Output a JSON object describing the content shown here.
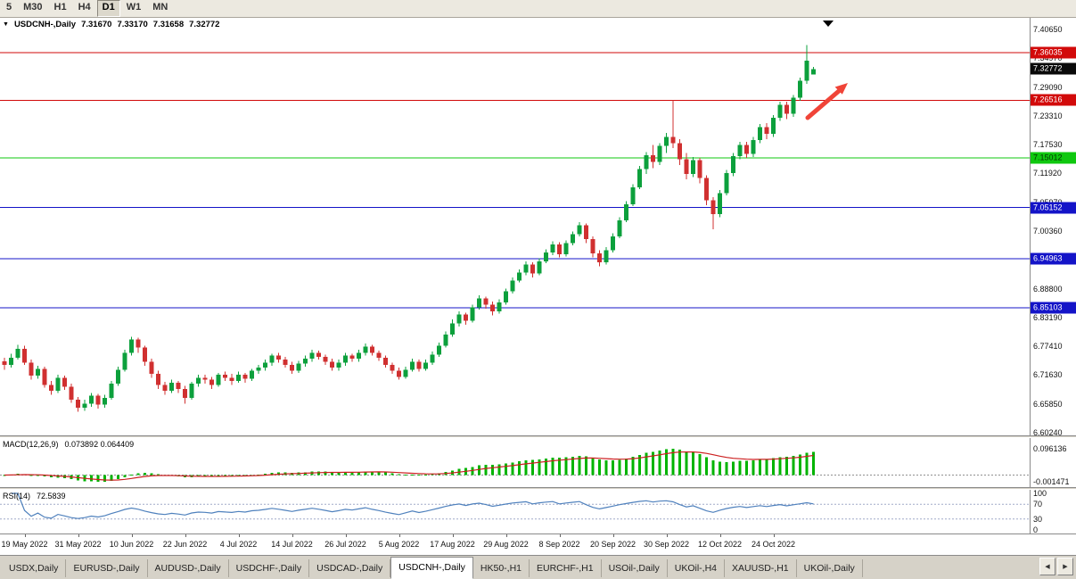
{
  "toolbar": {
    "timeframes": [
      {
        "label": "5",
        "active": false
      },
      {
        "label": "M30",
        "active": false
      },
      {
        "label": "H1",
        "active": false
      },
      {
        "label": "H4",
        "active": false
      },
      {
        "label": "D1",
        "active": true
      },
      {
        "label": "W1",
        "active": false
      },
      {
        "label": "MN",
        "active": false
      }
    ]
  },
  "symbol_info": {
    "collapse_icon": "▼",
    "symbol": "USDCNH-,Daily",
    "open": "7.31670",
    "high": "7.33170",
    "low": "7.31658",
    "close": "7.32772"
  },
  "price_scale": {
    "top_value": 7.4065,
    "bottom_value": 6.6024,
    "labels": [
      "7.40650",
      "7.34970",
      "7.29090",
      "7.23310",
      "7.17530",
      "7.11920",
      "7.05970",
      "7.00360",
      "6.94580",
      "6.88800",
      "6.83190",
      "6.77410",
      "6.71630",
      "6.65850",
      "6.60240"
    ]
  },
  "levels": [
    {
      "name": "resistance-1",
      "value": 7.36035,
      "label": "7.36035",
      "line_color": "#d20a0a",
      "tag_bg": "#d20a0a",
      "tag_fg": "#ffffff",
      "draw_line": true
    },
    {
      "name": "current-price",
      "value": 7.32772,
      "label": "7.32772",
      "line_color": "#000000",
      "tag_bg": "#0a0a0a",
      "tag_fg": "#ffffff",
      "draw_line": false
    },
    {
      "name": "resistance-2",
      "value": 7.26516,
      "label": "7.26516",
      "line_color": "#d20a0a",
      "tag_bg": "#d20a0a",
      "tag_fg": "#ffffff",
      "draw_line": true
    },
    {
      "name": "pivot-green",
      "value": 7.15012,
      "label": "7.15012",
      "line_color": "#0fc80f",
      "tag_bg": "#0fc80f",
      "tag_fg": "#003300",
      "draw_line": true
    },
    {
      "name": "support-1",
      "value": 7.05152,
      "label": "7.05152",
      "line_color": "#1414c8",
      "tag_bg": "#1414c8",
      "tag_fg": "#ffffff",
      "draw_line": true
    },
    {
      "name": "support-2",
      "value": 6.94963,
      "label": "6.94963",
      "line_color": "#1414c8",
      "tag_bg": "#1414c8",
      "tag_fg": "#ffffff",
      "draw_line": true
    },
    {
      "name": "support-3",
      "value": 6.85103,
      "label": "6.85103",
      "line_color": "#1414c8",
      "tag_bg": "#1414c8",
      "tag_fg": "#ffffff",
      "draw_line": true
    }
  ],
  "date_axis": {
    "labels": [
      "19 May 2022",
      "31 May 2022",
      "10 Jun 2022",
      "22 Jun 2022",
      "4 Jul 2022",
      "14 Jul 2022",
      "26 Jul 2022",
      "5 Aug 2022",
      "17 Aug 2022",
      "29 Aug 2022",
      "8 Sep 2022",
      "20 Sep 2022",
      "30 Sep 2022",
      "12 Oct 2022",
      "24 Oct 2022"
    ],
    "candle_indices": [
      3,
      11,
      19,
      27,
      35,
      43,
      51,
      59,
      67,
      75,
      83,
      91,
      99,
      107,
      115
    ]
  },
  "chart_data": {
    "type": "candlestick",
    "symbol": "USDCNH-",
    "timeframe": "Daily",
    "up_color": "#0ca03c",
    "down_color": "#d03030",
    "ohlc": [
      [
        6.745,
        6.752,
        6.728,
        6.738
      ],
      [
        6.738,
        6.76,
        6.732,
        6.752
      ],
      [
        6.752,
        6.778,
        6.748,
        6.77
      ],
      [
        6.77,
        6.776,
        6.738,
        6.742
      ],
      [
        6.742,
        6.748,
        6.708,
        6.716
      ],
      [
        6.716,
        6.736,
        6.71,
        6.73
      ],
      [
        6.73,
        6.734,
        6.692,
        6.698
      ],
      [
        6.698,
        6.706,
        6.678,
        6.686
      ],
      [
        6.686,
        6.718,
        6.682,
        6.712
      ],
      [
        6.712,
        6.716,
        6.688,
        6.694
      ],
      [
        6.694,
        6.7,
        6.662,
        6.668
      ],
      [
        6.668,
        6.674,
        6.644,
        6.652
      ],
      [
        6.652,
        6.668,
        6.646,
        6.66
      ],
      [
        6.66,
        6.682,
        6.654,
        6.676
      ],
      [
        6.676,
        6.68,
        6.65,
        6.658
      ],
      [
        6.658,
        6.678,
        6.652,
        6.672
      ],
      [
        6.672,
        6.706,
        6.668,
        6.7
      ],
      [
        6.7,
        6.734,
        6.696,
        6.728
      ],
      [
        6.728,
        6.768,
        6.724,
        6.762
      ],
      [
        6.762,
        6.794,
        6.756,
        6.788
      ],
      [
        6.788,
        6.792,
        6.762,
        6.772
      ],
      [
        6.772,
        6.776,
        6.736,
        6.744
      ],
      [
        6.744,
        6.75,
        6.712,
        6.72
      ],
      [
        6.72,
        6.726,
        6.69,
        6.698
      ],
      [
        6.698,
        6.704,
        6.678,
        6.686
      ],
      [
        6.686,
        6.708,
        6.682,
        6.702
      ],
      [
        6.702,
        6.706,
        6.682,
        6.69
      ],
      [
        6.69,
        6.696,
        6.66,
        6.672
      ],
      [
        6.672,
        6.704,
        6.668,
        6.7
      ],
      [
        6.7,
        6.718,
        6.694,
        6.712
      ],
      [
        6.712,
        6.718,
        6.7,
        6.708
      ],
      [
        6.708,
        6.714,
        6.69,
        6.698
      ],
      [
        6.698,
        6.722,
        6.694,
        6.718
      ],
      [
        6.718,
        6.724,
        6.706,
        6.712
      ],
      [
        6.712,
        6.72,
        6.698,
        6.706
      ],
      [
        6.706,
        6.724,
        6.702,
        6.718
      ],
      [
        6.718,
        6.722,
        6.702,
        6.71
      ],
      [
        6.71,
        6.73,
        6.706,
        6.726
      ],
      [
        6.726,
        6.738,
        6.72,
        6.732
      ],
      [
        6.732,
        6.748,
        6.726,
        6.742
      ],
      [
        6.742,
        6.76,
        6.736,
        6.756
      ],
      [
        6.756,
        6.762,
        6.742,
        6.748
      ],
      [
        6.748,
        6.754,
        6.732,
        6.738
      ],
      [
        6.738,
        6.744,
        6.72,
        6.726
      ],
      [
        6.726,
        6.746,
        6.722,
        6.74
      ],
      [
        6.74,
        6.756,
        6.734,
        6.75
      ],
      [
        6.75,
        6.768,
        6.744,
        6.762
      ],
      [
        6.762,
        6.766,
        6.748,
        6.754
      ],
      [
        6.754,
        6.758,
        6.738,
        6.744
      ],
      [
        6.744,
        6.75,
        6.726,
        6.732
      ],
      [
        6.732,
        6.748,
        6.726,
        6.742
      ],
      [
        6.742,
        6.762,
        6.736,
        6.756
      ],
      [
        6.756,
        6.76,
        6.744,
        6.75
      ],
      [
        6.75,
        6.768,
        6.744,
        6.762
      ],
      [
        6.762,
        6.78,
        6.756,
        6.774
      ],
      [
        6.774,
        6.778,
        6.756,
        6.762
      ],
      [
        6.762,
        6.766,
        6.746,
        6.752
      ],
      [
        6.752,
        6.756,
        6.732,
        6.738
      ],
      [
        6.738,
        6.742,
        6.72,
        6.726
      ],
      [
        6.726,
        6.732,
        6.708,
        6.714
      ],
      [
        6.714,
        6.734,
        6.71,
        6.728
      ],
      [
        6.728,
        6.75,
        6.724,
        6.744
      ],
      [
        6.744,
        6.748,
        6.724,
        6.73
      ],
      [
        6.73,
        6.748,
        6.726,
        6.742
      ],
      [
        6.742,
        6.764,
        6.738,
        6.758
      ],
      [
        6.758,
        6.782,
        6.754,
        6.776
      ],
      [
        6.776,
        6.804,
        6.772,
        6.798
      ],
      [
        6.798,
        6.828,
        6.794,
        6.82
      ],
      [
        6.82,
        6.844,
        6.814,
        6.838
      ],
      [
        6.838,
        6.842,
        6.818,
        6.826
      ],
      [
        6.826,
        6.858,
        6.822,
        6.852
      ],
      [
        6.852,
        6.876,
        6.848,
        6.87
      ],
      [
        6.87,
        6.874,
        6.85,
        6.858
      ],
      [
        6.858,
        6.864,
        6.836,
        6.844
      ],
      [
        6.844,
        6.868,
        6.84,
        6.862
      ],
      [
        6.862,
        6.89,
        6.858,
        6.884
      ],
      [
        6.884,
        6.912,
        6.88,
        6.906
      ],
      [
        6.906,
        6.928,
        6.902,
        6.922
      ],
      [
        6.922,
        6.944,
        6.916,
        6.938
      ],
      [
        6.938,
        6.942,
        6.912,
        6.92
      ],
      [
        6.92,
        6.95,
        6.916,
        6.944
      ],
      [
        6.944,
        6.968,
        6.94,
        6.962
      ],
      [
        6.962,
        6.984,
        6.956,
        6.978
      ],
      [
        6.978,
        6.982,
        6.952,
        6.958
      ],
      [
        6.958,
        6.986,
        6.954,
        6.98
      ],
      [
        6.98,
        7.004,
        6.976,
        6.998
      ],
      [
        6.998,
        7.022,
        6.994,
        7.016
      ],
      [
        7.016,
        7.02,
        6.98,
        6.988
      ],
      [
        6.988,
        6.994,
        6.952,
        6.96
      ],
      [
        6.96,
        6.966,
        6.934,
        6.942
      ],
      [
        6.942,
        6.972,
        6.938,
        6.966
      ],
      [
        6.966,
        7.0,
        6.962,
        6.994
      ],
      [
        6.994,
        7.032,
        6.99,
        7.026
      ],
      [
        7.026,
        7.064,
        7.022,
        7.058
      ],
      [
        7.058,
        7.098,
        7.054,
        7.092
      ],
      [
        7.092,
        7.134,
        7.088,
        7.128
      ],
      [
        7.128,
        7.162,
        7.118,
        7.156
      ],
      [
        7.156,
        7.176,
        7.13,
        7.142
      ],
      [
        7.142,
        7.18,
        7.136,
        7.174
      ],
      [
        7.174,
        7.2,
        7.16,
        7.192
      ],
      [
        7.192,
        7.265,
        7.17,
        7.18
      ],
      [
        7.18,
        7.188,
        7.136,
        7.148
      ],
      [
        7.148,
        7.16,
        7.108,
        7.118
      ],
      [
        7.118,
        7.152,
        7.112,
        7.146
      ],
      [
        7.146,
        7.15,
        7.1,
        7.11
      ],
      [
        7.11,
        7.116,
        7.056,
        7.066
      ],
      [
        7.066,
        7.072,
        7.008,
        7.038
      ],
      [
        7.038,
        7.086,
        7.032,
        7.08
      ],
      [
        7.08,
        7.126,
        7.076,
        7.12
      ],
      [
        7.12,
        7.16,
        7.114,
        7.154
      ],
      [
        7.154,
        7.182,
        7.148,
        7.176
      ],
      [
        7.176,
        7.182,
        7.15,
        7.158
      ],
      [
        7.158,
        7.192,
        7.152,
        7.186
      ],
      [
        7.186,
        7.218,
        7.18,
        7.212
      ],
      [
        7.212,
        7.22,
        7.188,
        7.198
      ],
      [
        7.198,
        7.236,
        7.192,
        7.23
      ],
      [
        7.23,
        7.262,
        7.224,
        7.256
      ],
      [
        7.256,
        7.262,
        7.228,
        7.238
      ],
      [
        7.238,
        7.276,
        7.232,
        7.27
      ],
      [
        7.27,
        7.31,
        7.264,
        7.304
      ],
      [
        7.304,
        7.375,
        7.298,
        7.344
      ],
      [
        7.3167,
        7.3317,
        7.31658,
        7.32772
      ]
    ]
  },
  "indicators": {
    "macd": {
      "label": "MACD(12,26,9)",
      "values": "0.073892 0.064409",
      "fast": 12,
      "slow": 26,
      "signal": 9,
      "scale_top": "0.096136",
      "scale_bottom": "-0.001471",
      "histogram_color": "#00b400",
      "signal_color": "#cc2020"
    },
    "rsi": {
      "label": "RSI(14)",
      "value": "72.5839",
      "period": 14,
      "scale": [
        "100",
        "70",
        "30",
        "0"
      ],
      "levels": [
        70,
        30
      ],
      "line_color": "#4f81bd",
      "level_color": "#a0aac8"
    }
  },
  "annotations": {
    "arrow_color": "#f04438",
    "shift_marker_color": "#000000"
  },
  "tabs": {
    "items": [
      {
        "label": "USDX,Daily",
        "active": false
      },
      {
        "label": "EURUSD-,Daily",
        "active": false
      },
      {
        "label": "AUDUSD-,Daily",
        "active": false
      },
      {
        "label": "USDCHF-,Daily",
        "active": false
      },
      {
        "label": "USDCAD-,Daily",
        "active": false
      },
      {
        "label": "USDCNH-,Daily",
        "active": true
      },
      {
        "label": "HK50-,H1",
        "active": false
      },
      {
        "label": "EURCHF-,H1",
        "active": false
      },
      {
        "label": "USOil-,Daily",
        "active": false
      },
      {
        "label": "UKOil-,H4",
        "active": false
      },
      {
        "label": "XAUUSD-,H1",
        "active": false
      },
      {
        "label": "UKOil-,Daily",
        "active": false
      }
    ],
    "scroll_left_icon": "◀",
    "scroll_right_icon": "▶"
  }
}
